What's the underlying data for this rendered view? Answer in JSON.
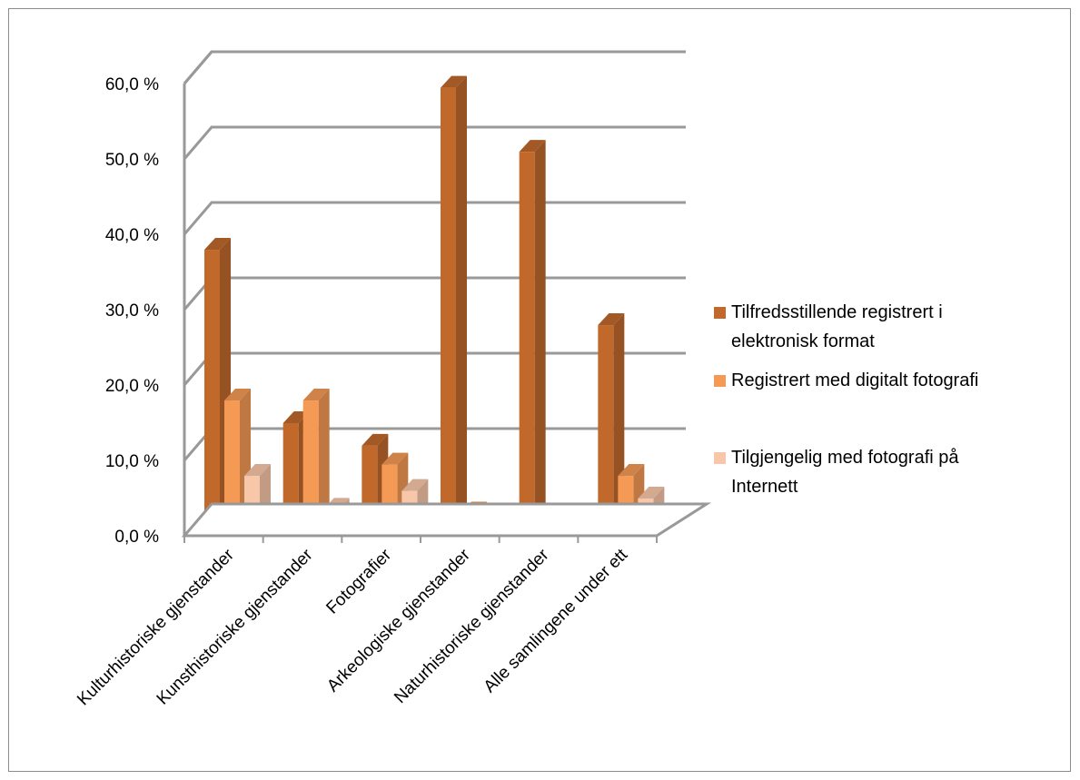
{
  "chart_data": {
    "type": "bar",
    "title": "",
    "xlabel": "",
    "ylabel": "",
    "ylim": [
      0,
      60
    ],
    "yticks": [
      "0,0 %",
      "10,0 %",
      "20,0 %",
      "30,0 %",
      "40,0 %",
      "50,0 %",
      "60,0 %"
    ],
    "grid": true,
    "legend_position": "right",
    "categories": [
      "Kulturhistoriske gjenstander",
      "Kunsthistoriske gjenstander",
      "Fotografier",
      "Arkeologiske gjenstander",
      "Naturhistoriske gjenstander",
      "Alle samlingene under ett"
    ],
    "series": [
      {
        "name": "Tilfredsstillende registrert i elektronisk format",
        "legend_lines": [
          "Tilfredsstillende registrert i",
          "elektronisk format"
        ],
        "color": "#C0692B",
        "values": [
          36.5,
          13.5,
          10.5,
          58.0,
          49.5,
          26.5
        ]
      },
      {
        "name": "Registrert med digitalt fotografi",
        "legend_lines": [
          "Registrert med digitalt fotografi"
        ],
        "color": "#F59A55",
        "values": [
          16.5,
          16.5,
          8.0,
          1.5,
          1.0,
          6.5
        ]
      },
      {
        "name": "Tilgjengelig med fotografi på Internett",
        "legend_lines": [
          "Tilgjengelig med fotografi på",
          "Internett"
        ],
        "color": "#F8C7A9",
        "values": [
          6.5,
          2.0,
          4.5,
          1.0,
          0.3,
          3.5
        ]
      }
    ]
  }
}
